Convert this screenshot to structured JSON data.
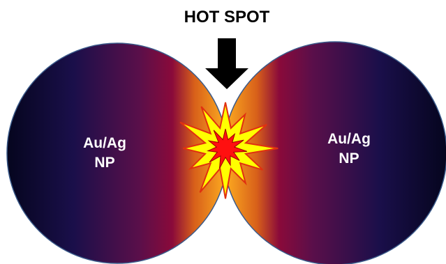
{
  "title": "HOT SPOT",
  "nodes": [
    {
      "label": [
        "Au/Ag",
        "NP"
      ]
    },
    {
      "label": [
        "Au/Ag",
        "NP"
      ]
    }
  ]
}
